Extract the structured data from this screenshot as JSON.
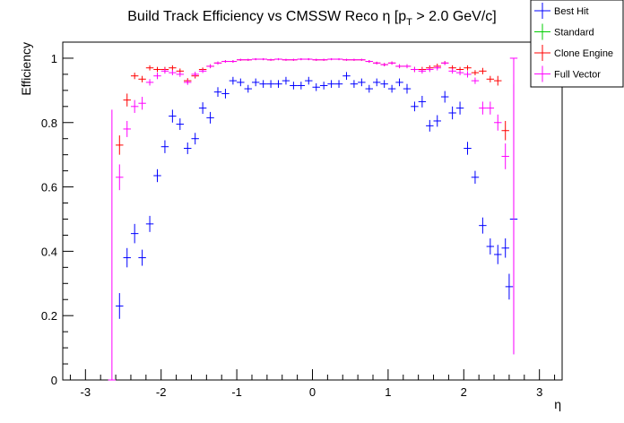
{
  "chart_data": {
    "type": "scatter",
    "title": "Build Track Efficiency vs CMSSW Reco η [p_T > 2.0 GeV/c]",
    "title_parts": {
      "main": "Build Track Efficiency vs CMSSW Reco η [p",
      "sub": "T",
      "tail": " > 2.0 GeV/c]"
    },
    "xlabel": "η",
    "ylabel": "Efficiency",
    "xlim": [
      -3.3,
      3.3
    ],
    "ylim": [
      0,
      1.05
    ],
    "xticks": [
      -3,
      -2,
      -1,
      0,
      1,
      2,
      3
    ],
    "xtick_labels": [
      "-3",
      "-2",
      "-1",
      "0",
      "1",
      "2",
      "3"
    ],
    "yticks": [
      0,
      0.2,
      0.4,
      0.6,
      0.8,
      1
    ],
    "ytick_labels": [
      "0",
      "0.2",
      "0.4",
      "0.6",
      "0.8",
      "1"
    ],
    "grid": false,
    "legend_position": "top-right",
    "x_bin_half_width": 0.05,
    "x": [
      -2.55,
      -2.45,
      -2.35,
      -2.25,
      -2.15,
      -2.05,
      -1.95,
      -1.85,
      -1.75,
      -1.65,
      -1.55,
      -1.45,
      -1.35,
      -1.25,
      -1.15,
      -1.05,
      -0.95,
      -0.85,
      -0.75,
      -0.65,
      -0.55,
      -0.45,
      -0.35,
      -0.25,
      -0.15,
      -0.05,
      0.05,
      0.15,
      0.25,
      0.35,
      0.45,
      0.55,
      0.65,
      0.75,
      0.85,
      0.95,
      1.05,
      1.15,
      1.25,
      1.35,
      1.45,
      1.55,
      1.65,
      1.75,
      1.85,
      1.95,
      2.05,
      2.15,
      2.25,
      2.35,
      2.45,
      2.55
    ],
    "series": [
      {
        "name": "Best Hit",
        "color": "#0000ff",
        "y": [
          0.23,
          0.38,
          0.455,
          0.38,
          0.485,
          0.635,
          0.725,
          0.82,
          0.795,
          0.72,
          0.75,
          0.845,
          0.815,
          0.895,
          0.89,
          0.93,
          0.925,
          0.905,
          0.925,
          0.92,
          0.92,
          0.92,
          0.93,
          0.915,
          0.915,
          0.93,
          0.91,
          0.915,
          0.92,
          0.92,
          0.945,
          0.92,
          0.925,
          0.905,
          0.925,
          0.92,
          0.905,
          0.925,
          0.905,
          0.85,
          0.865,
          0.79,
          0.805,
          0.88,
          0.83,
          0.845,
          0.72,
          0.63,
          0.48,
          0.415,
          0.39,
          0.41
        ],
        "y_err": [
          0.04,
          0.03,
          0.03,
          0.025,
          0.025,
          0.02,
          0.02,
          0.02,
          0.018,
          0.018,
          0.018,
          0.018,
          0.018,
          0.015,
          0.015,
          0.012,
          0.012,
          0.012,
          0.012,
          0.012,
          0.012,
          0.012,
          0.012,
          0.012,
          0.012,
          0.012,
          0.012,
          0.012,
          0.012,
          0.012,
          0.012,
          0.012,
          0.012,
          0.012,
          0.012,
          0.012,
          0.012,
          0.012,
          0.015,
          0.015,
          0.018,
          0.018,
          0.018,
          0.018,
          0.02,
          0.02,
          0.02,
          0.02,
          0.025,
          0.025,
          0.03,
          0.03
        ],
        "extra_points": [
          {
            "x": 2.6,
            "y": 0.29,
            "y_err": 0.04
          },
          {
            "x": 2.66,
            "y": 0.5,
            "y_err": 0.42
          }
        ]
      },
      {
        "name": "Standard",
        "color": "#00cc00",
        "y": [],
        "y_err": []
      },
      {
        "name": "Clone Engine",
        "color": "#ff0000",
        "y": [
          0.73,
          0.87,
          0.945,
          0.935,
          0.97,
          0.965,
          0.965,
          0.97,
          0.96,
          0.93,
          0.945,
          0.965,
          0.975,
          0.985,
          0.99,
          0.99,
          0.995,
          0.995,
          0.997,
          0.997,
          0.995,
          0.997,
          0.995,
          0.995,
          0.997,
          0.997,
          0.995,
          0.995,
          0.997,
          0.997,
          0.995,
          0.995,
          0.995,
          0.99,
          0.985,
          0.98,
          0.985,
          0.975,
          0.975,
          0.965,
          0.965,
          0.97,
          0.975,
          0.985,
          0.97,
          0.965,
          0.97,
          0.955,
          0.96,
          0.935,
          0.93,
          0.775
        ],
        "y_err": [
          0.03,
          0.02,
          0.01,
          0.01,
          0.008,
          0.008,
          0.008,
          0.008,
          0.008,
          0.008,
          0.008,
          0.006,
          0.006,
          0.005,
          0.004,
          0.004,
          0.003,
          0.003,
          0.003,
          0.003,
          0.003,
          0.003,
          0.003,
          0.003,
          0.003,
          0.003,
          0.003,
          0.003,
          0.003,
          0.003,
          0.003,
          0.003,
          0.003,
          0.004,
          0.004,
          0.005,
          0.005,
          0.006,
          0.006,
          0.008,
          0.008,
          0.008,
          0.008,
          0.006,
          0.008,
          0.008,
          0.008,
          0.008,
          0.01,
          0.01,
          0.015,
          0.03
        ]
      },
      {
        "name": "Full Vector",
        "color": "#ff00ff",
        "y": [
          0.63,
          0.78,
          0.85,
          0.86,
          0.925,
          0.945,
          0.96,
          0.955,
          0.95,
          0.925,
          0.95,
          0.96,
          0.975,
          0.985,
          0.99,
          0.99,
          0.995,
          0.995,
          0.997,
          0.997,
          0.995,
          0.997,
          0.995,
          0.995,
          0.997,
          0.997,
          0.995,
          0.995,
          0.997,
          0.997,
          0.995,
          0.995,
          0.995,
          0.99,
          0.985,
          0.98,
          0.985,
          0.975,
          0.975,
          0.965,
          0.96,
          0.965,
          0.97,
          0.985,
          0.96,
          0.955,
          0.95,
          0.93,
          0.845,
          0.845,
          0.8,
          0.695
        ],
        "y_err": [
          0.04,
          0.025,
          0.02,
          0.02,
          0.01,
          0.01,
          0.008,
          0.008,
          0.008,
          0.008,
          0.008,
          0.006,
          0.006,
          0.005,
          0.004,
          0.004,
          0.003,
          0.003,
          0.003,
          0.003,
          0.003,
          0.003,
          0.003,
          0.003,
          0.003,
          0.003,
          0.003,
          0.003,
          0.003,
          0.003,
          0.003,
          0.003,
          0.003,
          0.004,
          0.004,
          0.005,
          0.005,
          0.006,
          0.006,
          0.008,
          0.008,
          0.008,
          0.008,
          0.006,
          0.008,
          0.008,
          0.01,
          0.01,
          0.02,
          0.02,
          0.025,
          0.04
        ],
        "extra_points": [
          {
            "x": -2.65,
            "y": 0.0,
            "y_err": 0.0,
            "y_top": 0.84
          },
          {
            "x": 2.66,
            "y": 1.0,
            "y_err": 0.0,
            "y_low": 0.08
          }
        ]
      }
    ]
  }
}
